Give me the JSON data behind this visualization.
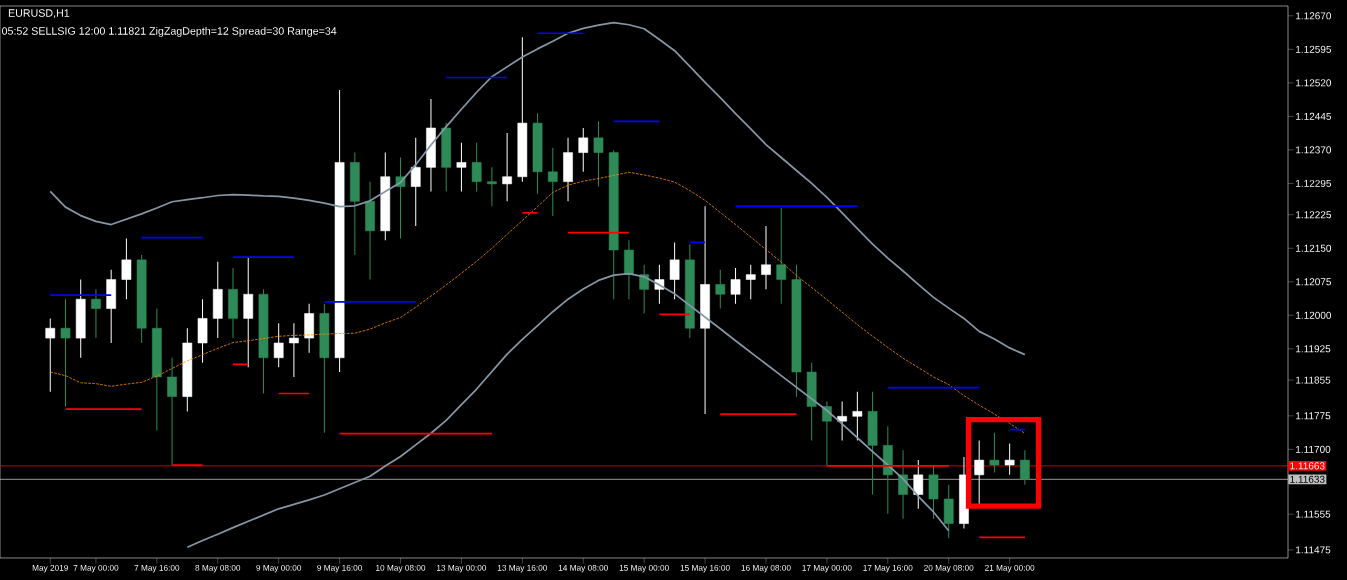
{
  "chart_data": {
    "type": "candlestick",
    "title": "EURUSD,H1",
    "subtitle": "05:52  SELLSIG  12:00  1.11821  ZigZagDepth=12  Spread=30  Range=34",
    "categories": [
      "May 2019",
      null,
      null,
      "7 May 00:00",
      null,
      null,
      null,
      "7 May 16:00",
      null,
      null,
      null,
      "8 May 08:00",
      null,
      null,
      null,
      "9 May 00:00",
      null,
      null,
      null,
      "9 May 16:00",
      null,
      null,
      null,
      "10 May 08:00",
      null,
      null,
      null,
      "13 May 00:00",
      null,
      null,
      null,
      "13 May 16:00",
      null,
      null,
      null,
      "14 May 08:00",
      null,
      null,
      null,
      "15 May 00:00",
      null,
      null,
      null,
      "15 May 16:00",
      null,
      null,
      null,
      "16 May 08:00",
      null,
      null,
      null,
      "17 May 00:00",
      null,
      null,
      null,
      "17 May 16:00",
      null,
      null,
      null,
      "20 May 08:00",
      null,
      null,
      null,
      "21 May 00:00",
      null
    ],
    "ohlc": [
      [
        1.11949,
        1.11993,
        1.11829,
        1.11971
      ],
      [
        1.11971,
        1.12036,
        1.11796,
        1.11949
      ],
      [
        1.11949,
        1.1208,
        1.11905,
        1.12036
      ],
      [
        1.12036,
        1.12058,
        1.11949,
        1.12015
      ],
      [
        1.12015,
        1.12102,
        1.11938,
        1.1208
      ],
      [
        1.1208,
        1.12172,
        1.12036,
        1.12124
      ],
      [
        1.12124,
        1.12135,
        1.11938,
        1.11971
      ],
      [
        1.11971,
        1.12015,
        1.11742,
        1.11862
      ],
      [
        1.11862,
        1.11905,
        1.11665,
        1.11818
      ],
      [
        1.11818,
        1.11971,
        1.11785,
        1.11938
      ],
      [
        1.11938,
        1.12036,
        1.11894,
        1.11993
      ],
      [
        1.11993,
        1.1212,
        1.11949,
        1.12058
      ],
      [
        1.12058,
        1.12106,
        1.11949,
        1.11993
      ],
      [
        1.11993,
        1.12128,
        1.11884,
        1.12047
      ],
      [
        1.12047,
        1.12058,
        1.11825,
        1.11905
      ],
      [
        1.11905,
        1.11982,
        1.11884,
        1.11938
      ],
      [
        1.11938,
        1.11982,
        1.11862,
        1.11949
      ],
      [
        1.11949,
        1.12026,
        1.11916,
        1.12004
      ],
      [
        1.12004,
        1.12026,
        1.11737,
        1.11905
      ],
      [
        1.11905,
        1.12504,
        1.11873,
        1.12342
      ],
      [
        1.12342,
        1.12364,
        1.12135,
        1.12255
      ],
      [
        1.12255,
        1.12299,
        1.1208,
        1.12189
      ],
      [
        1.12189,
        1.12364,
        1.12168,
        1.1231
      ],
      [
        1.1231,
        1.12353,
        1.12172,
        1.12288
      ],
      [
        1.12288,
        1.12397,
        1.122,
        1.12331
      ],
      [
        1.12331,
        1.12484,
        1.12277,
        1.12419
      ],
      [
        1.12419,
        1.1243,
        1.12277,
        1.12331
      ],
      [
        1.12331,
        1.12386,
        1.12277,
        1.12342
      ],
      [
        1.12342,
        1.12386,
        1.12277,
        1.12299
      ],
      [
        1.12299,
        1.12331,
        1.12244,
        1.12294
      ],
      [
        1.12294,
        1.12408,
        1.12255,
        1.1231
      ],
      [
        1.1231,
        1.12622,
        1.12299,
        1.1243
      ],
      [
        1.1243,
        1.12452,
        1.12272,
        1.12321
      ],
      [
        1.12321,
        1.12375,
        1.12222,
        1.12299
      ],
      [
        1.12299,
        1.12397,
        1.12255,
        1.12364
      ],
      [
        1.12364,
        1.12419,
        1.12321,
        1.12397
      ],
      [
        1.12397,
        1.12434,
        1.12288,
        1.12364
      ],
      [
        1.12364,
        1.12369,
        1.12036,
        1.12146
      ],
      [
        1.12146,
        1.12168,
        1.12036,
        1.12091
      ],
      [
        1.12091,
        1.12113,
        1.12004,
        1.12058
      ],
      [
        1.12058,
        1.12113,
        1.12026,
        1.1208
      ],
      [
        1.1208,
        1.12163,
        1.12036,
        1.12124
      ],
      [
        1.12124,
        1.12159,
        1.11949,
        1.11971
      ],
      [
        1.11971,
        1.12244,
        1.11779,
        1.12069
      ],
      [
        1.12069,
        1.12102,
        1.12015,
        1.12047
      ],
      [
        1.12047,
        1.12106,
        1.12026,
        1.1208
      ],
      [
        1.1208,
        1.12113,
        1.12036,
        1.12091
      ],
      [
        1.12091,
        1.122,
        1.12058,
        1.12113
      ],
      [
        1.12113,
        1.1224,
        1.12026,
        1.1208
      ],
      [
        1.1208,
        1.12113,
        1.11818,
        1.11873
      ],
      [
        1.11873,
        1.11894,
        1.1172,
        1.11796
      ],
      [
        1.11796,
        1.11807,
        1.11665,
        1.11763
      ],
      [
        1.11763,
        1.11807,
        1.1172,
        1.11774
      ],
      [
        1.11774,
        1.11829,
        1.1172,
        1.11785
      ],
      [
        1.11785,
        1.11829,
        1.11599,
        1.11709
      ],
      [
        1.11709,
        1.11752,
        1.11556,
        1.11643
      ],
      [
        1.11643,
        1.11698,
        1.11545,
        1.11599
      ],
      [
        1.11599,
        1.11676,
        1.11567,
        1.11643
      ],
      [
        1.11643,
        1.11665,
        1.11545,
        1.11589
      ],
      [
        1.11589,
        1.11621,
        1.11501,
        1.11534
      ],
      [
        1.11534,
        1.11683,
        1.11523,
        1.11643
      ],
      [
        1.11643,
        1.1172,
        1.11578,
        1.11676
      ],
      [
        1.11676,
        1.11737,
        1.11648,
        1.11665
      ],
      [
        1.11665,
        1.11713,
        1.11643,
        1.11676
      ],
      [
        1.11676,
        1.11698,
        1.11621,
        1.11633
      ]
    ],
    "colors": [
      "#ffffff",
      "#2e8b57",
      "#ffffff",
      "#2e8b57",
      "#ffffff",
      "#ffffff",
      "#2e8b57",
      "#2e8b57",
      "#2e8b57",
      "#ffffff",
      "#ffffff",
      "#ffffff",
      "#2e8b57",
      "#ffffff",
      "#2e8b57",
      "#ffffff",
      "#ffffff",
      "#ffffff",
      "#2e8b57",
      "#ffffff",
      "#2e8b57",
      "#2e8b57",
      "#ffffff",
      "#2e8b57",
      "#ffffff",
      "#ffffff",
      "#2e8b57",
      "#ffffff",
      "#2e8b57",
      "#2e8b57",
      "#ffffff",
      "#ffffff",
      "#2e8b57",
      "#2e8b57",
      "#ffffff",
      "#ffffff",
      "#2e8b57",
      "#2e8b57",
      "#2e8b57",
      "#2e8b57",
      "#ffffff",
      "#ffffff",
      "#2e8b57",
      "#ffffff",
      "#2e8b57",
      "#ffffff",
      "#ffffff",
      "#ffffff",
      "#2e8b57",
      "#2e8b57",
      "#2e8b57",
      "#2e8b57",
      "#ffffff",
      "#ffffff",
      "#2e8b57",
      "#2e8b57",
      "#2e8b57",
      "#ffffff",
      "#2e8b57",
      "#2e8b57",
      "#ffffff",
      "#ffffff",
      "#2e8b57",
      "#ffffff",
      "#2e8b57"
    ],
    "series": [
      {
        "type": "line",
        "color": "#8596a6",
        "line_style": "solid",
        "values": [
          1.12277,
          1.12242,
          1.12223,
          1.1221,
          1.12203,
          1.12215,
          1.12227,
          1.1224,
          1.12254,
          1.12259,
          1.12263,
          1.12268,
          1.1227,
          1.12269,
          1.12267,
          1.12266,
          1.12262,
          1.12257,
          1.12251,
          1.12243,
          1.12245,
          1.12256,
          1.12277,
          1.12297,
          1.12337,
          1.12381,
          1.12422,
          1.12461,
          1.12499,
          1.12534,
          1.12556,
          1.12578,
          1.12596,
          1.12613,
          1.12631,
          1.12642,
          1.12649,
          1.12655,
          1.1265,
          1.12641,
          1.12617,
          1.12592,
          1.12557,
          1.12521,
          1.12487,
          1.12451,
          1.12417,
          1.12382,
          1.12353,
          1.12324,
          1.12295,
          1.12264,
          1.12229,
          1.12194,
          1.12159,
          1.12128,
          1.12099,
          1.12069,
          1.1204,
          1.12016,
          1.11993,
          1.11964,
          1.11947,
          1.11927,
          1.11912
        ]
      },
      {
        "type": "line",
        "color": "#8596a6",
        "line_style": "solid",
        "values": [
          null,
          null,
          null,
          null,
          null,
          null,
          null,
          null,
          null,
          1.11481,
          1.11496,
          1.1151,
          1.11525,
          1.11539,
          1.11553,
          1.11567,
          1.11577,
          1.11587,
          1.11598,
          1.11612,
          1.11626,
          1.1164,
          1.11663,
          1.11684,
          1.1171,
          1.11736,
          1.11765,
          1.118,
          1.11835,
          1.11874,
          1.11913,
          1.11946,
          1.11977,
          1.12008,
          1.12036,
          1.12059,
          1.12078,
          1.1209,
          1.12093,
          1.12086,
          1.12068,
          1.12048,
          1.12022,
          1.11996,
          1.1197,
          1.11943,
          1.11917,
          1.11891,
          1.11865,
          1.11839,
          1.11813,
          1.11787,
          1.11757,
          1.11726,
          1.11695,
          1.11665,
          1.11634,
          1.11595,
          1.1156,
          1.11518,
          null,
          null,
          null,
          null,
          null
        ]
      },
      {
        "type": "line",
        "color": "#ff8c00",
        "line_style": "dashed",
        "values": [
          1.11873,
          1.11865,
          1.11849,
          1.11847,
          1.11841,
          1.11846,
          1.1185,
          1.11864,
          1.11881,
          1.11898,
          1.11912,
          1.11926,
          1.11939,
          1.11943,
          1.11948,
          1.11953,
          1.11955,
          1.11956,
          1.11958,
          1.11959,
          1.1196,
          1.11969,
          1.11983,
          1.11995,
          1.12018,
          1.12043,
          1.12068,
          1.12094,
          1.12121,
          1.1215,
          1.12181,
          1.12212,
          1.12243,
          1.12275,
          1.12291,
          1.123,
          1.12306,
          1.12313,
          1.1232,
          1.12314,
          1.12307,
          1.12298,
          1.12279,
          1.12257,
          1.1223,
          1.12203,
          1.12175,
          1.12147,
          1.12119,
          1.12089,
          1.12062,
          1.12035,
          1.12007,
          1.11979,
          1.11953,
          1.11928,
          1.11904,
          1.11883,
          1.11862,
          1.11845,
          1.1182,
          1.11799,
          1.11779,
          1.11758,
          1.11736
        ]
      },
      {
        "type": "line",
        "color": "#0000ff",
        "line_style": "solid",
        "values": [
          1.12045,
          1.12045,
          1.12045,
          1.12045,
          1.12045,
          null,
          1.12174,
          1.12174,
          1.12174,
          1.12174,
          1.12174,
          null,
          1.1213,
          1.1213,
          1.1213,
          1.1213,
          1.1213,
          null,
          1.1203,
          1.1203,
          1.1203,
          1.1203,
          1.1203,
          1.1203,
          1.1203,
          null,
          1.12532,
          1.12532,
          1.12532,
          1.12532,
          1.12532,
          null,
          1.12631,
          1.12631,
          1.12631,
          1.12631,
          null,
          1.12434,
          1.12434,
          1.12434,
          1.12434,
          null,
          1.12163,
          1.12163,
          null,
          1.12244,
          1.12244,
          1.12244,
          1.12244,
          1.12244,
          1.12244,
          1.12244,
          1.12244,
          1.12244,
          null,
          1.11838,
          1.11838,
          1.11838,
          1.11838,
          1.11838,
          1.11838,
          1.11838,
          null,
          1.11744,
          1.11744
        ]
      },
      {
        "type": "line",
        "color": "#ff0000",
        "line_style": "solid",
        "values": [
          null,
          1.1179,
          1.1179,
          1.1179,
          1.1179,
          1.1179,
          1.1179,
          null,
          1.11665,
          1.11665,
          1.11665,
          null,
          1.1189,
          1.1189,
          null,
          1.11825,
          1.11825,
          1.11825,
          null,
          1.11735,
          1.11735,
          1.11735,
          1.11735,
          1.11735,
          1.11735,
          1.11735,
          1.11735,
          1.11735,
          1.11735,
          1.11735,
          null,
          1.12229,
          1.12229,
          null,
          1.12185,
          1.12185,
          1.12185,
          1.12185,
          1.12185,
          null,
          1.12002,
          1.12002,
          1.12002,
          null,
          1.11779,
          1.11779,
          1.11779,
          1.11779,
          1.11779,
          1.11779,
          null,
          1.11663,
          1.11663,
          1.11663,
          1.11663,
          1.11663,
          1.11663,
          1.11663,
          1.11663,
          1.11663,
          null,
          1.11503,
          1.11503,
          1.11503,
          1.11503
        ]
      }
    ],
    "ylim": [
      1.11457,
      1.12692
    ],
    "yticks": [
      {
        "value": 1.1267,
        "label": "1.12670"
      },
      {
        "value": 1.12595,
        "label": "1.12595"
      },
      {
        "value": 1.1252,
        "label": "1.12520"
      },
      {
        "value": 1.12445,
        "label": "1.12445"
      },
      {
        "value": 1.1237,
        "label": "1.12370"
      },
      {
        "value": 1.12295,
        "label": "1.12295"
      },
      {
        "value": 1.12225,
        "label": "1.12225"
      },
      {
        "value": 1.1215,
        "label": "1.12150"
      },
      {
        "value": 1.12075,
        "label": "1.12075"
      },
      {
        "value": 1.12,
        "label": "1.12000"
      },
      {
        "value": 1.11925,
        "label": "1.11925"
      },
      {
        "value": 1.11855,
        "label": "1.11855"
      },
      {
        "value": 1.11775,
        "label": "1.11775"
      },
      {
        "value": 1.117,
        "label": "1.11700"
      },
      {
        "value": 1.11555,
        "label": "1.11555"
      },
      {
        "value": 1.11475,
        "label": "1.11475"
      }
    ],
    "ref_lines": [
      {
        "axis": "y",
        "value": 1.11663,
        "label": "1.11663",
        "color": "#ff0000"
      },
      {
        "axis": "y",
        "value": 1.11633,
        "label": "1.11633",
        "color": "#c0c0c0"
      }
    ]
  }
}
